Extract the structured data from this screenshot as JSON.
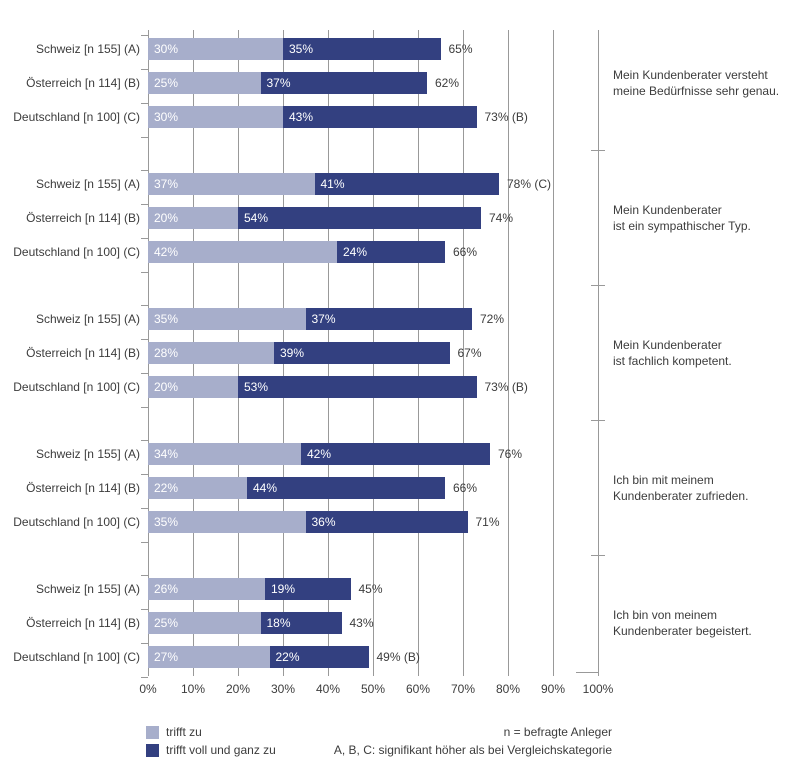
{
  "chart_data": {
    "type": "bar",
    "variant": "horizontal-stacked",
    "grid": true,
    "xlim": [
      0,
      100
    ],
    "x_ticks": [
      "0%",
      "10%",
      "20%",
      "30%",
      "40%",
      "50%",
      "60%",
      "70%",
      "80%",
      "90%",
      "100%"
    ],
    "legend_position": "bottom-left",
    "series_names": [
      "trifft zu",
      "trifft voll und ganz zu"
    ],
    "groups": [
      {
        "statement_line1": "Mein Kundenberater versteht",
        "statement_line2": "meine Bedürfnisse sehr genau.",
        "rows": [
          {
            "category": "Schweiz [n 155] (A)",
            "values": [
              30,
              35
            ],
            "value_labels": [
              "30%",
              "35%"
            ],
            "total_label": "65%"
          },
          {
            "category": "Österreich [n 114] (B)",
            "values": [
              25,
              37
            ],
            "value_labels": [
              "25%",
              "37%"
            ],
            "total_label": "62%"
          },
          {
            "category": "Deutschland [n 100] (C)",
            "values": [
              30,
              43
            ],
            "value_labels": [
              "30%",
              "43%"
            ],
            "total_label": "73% (B)"
          }
        ]
      },
      {
        "statement_line1": "Mein Kundenberater",
        "statement_line2": "ist ein sympathischer Typ.",
        "rows": [
          {
            "category": "Schweiz [n 155] (A)",
            "values": [
              37,
              41
            ],
            "value_labels": [
              "37%",
              "41%"
            ],
            "total_label": "78% (C)"
          },
          {
            "category": "Österreich [n 114] (B)",
            "values": [
              20,
              54
            ],
            "value_labels": [
              "20%",
              "54%"
            ],
            "total_label": "74%"
          },
          {
            "category": "Deutschland [n 100] (C)",
            "values": [
              42,
              24
            ],
            "value_labels": [
              "42%",
              "24%"
            ],
            "total_label": "66%"
          }
        ]
      },
      {
        "statement_line1": "Mein Kundenberater",
        "statement_line2": "ist fachlich kompetent.",
        "rows": [
          {
            "category": "Schweiz [n 155] (A)",
            "values": [
              35,
              37
            ],
            "value_labels": [
              "35%",
              "37%"
            ],
            "total_label": "72%"
          },
          {
            "category": "Österreich [n 114] (B)",
            "values": [
              28,
              39
            ],
            "value_labels": [
              "28%",
              "39%"
            ],
            "total_label": "67%"
          },
          {
            "category": "Deutschland [n 100] (C)",
            "values": [
              20,
              53
            ],
            "value_labels": [
              "20%",
              "53%"
            ],
            "total_label": "73% (B)"
          }
        ]
      },
      {
        "statement_line1": "Ich bin mit meinem",
        "statement_line2": "Kundenberater zufrieden.",
        "rows": [
          {
            "category": "Schweiz [n 155] (A)",
            "values": [
              34,
              42
            ],
            "value_labels": [
              "34%",
              "42%"
            ],
            "total_label": "76%"
          },
          {
            "category": "Österreich [n 114] (B)",
            "values": [
              22,
              44
            ],
            "value_labels": [
              "22%",
              "44%"
            ],
            "total_label": "66%"
          },
          {
            "category": "Deutschland [n 100] (C)",
            "values": [
              35,
              36
            ],
            "value_labels": [
              "35%",
              "36%"
            ],
            "total_label": "71%"
          }
        ]
      },
      {
        "statement_line1": "Ich bin von meinem",
        "statement_line2": "Kundenberater begeistert.",
        "rows": [
          {
            "category": "Schweiz [n 155] (A)",
            "values": [
              26,
              19
            ],
            "value_labels": [
              "26%",
              "19%"
            ],
            "total_label": "45%"
          },
          {
            "category": "Österreich [n 114] (B)",
            "values": [
              25,
              18
            ],
            "value_labels": [
              "25%",
              "18%"
            ],
            "total_label": "43%"
          },
          {
            "category": "Deutschland [n 100] (C)",
            "values": [
              27,
              22
            ],
            "value_labels": [
              "27%",
              "22%"
            ],
            "total_label": "49% (B)"
          }
        ]
      }
    ]
  },
  "legend": {
    "items": [
      {
        "label": "trifft zu",
        "color": "#a7aecb"
      },
      {
        "label": "trifft voll und ganz zu",
        "color": "#334080"
      }
    ]
  },
  "notes": {
    "line1": "n = befragte Anleger",
    "line2": "A, B, C: signifikant höher als bei Vergleichskategorie"
  },
  "colors": {
    "series1": "#a7aecb",
    "series2": "#334080",
    "gridline": "#999999",
    "text": "#3c3c3c",
    "value_text": "#ffffff"
  }
}
